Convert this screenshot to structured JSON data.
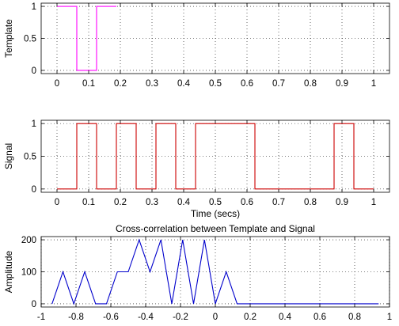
{
  "chart_data": [
    {
      "type": "line",
      "ylabel": "Template",
      "xlabel": "",
      "title": "",
      "xlim": [
        -0.05,
        1.05
      ],
      "ylim": [
        -0.05,
        1.05
      ],
      "xticks": [
        "0",
        "0.1",
        "0.2",
        "0.3",
        "0.4",
        "0.5",
        "0.6",
        "0.7",
        "0.8",
        "0.9",
        "1"
      ],
      "yticks": [
        "0",
        "0.5",
        "1"
      ],
      "grid": true,
      "color": "#ff00ff",
      "x": [
        0,
        0.0625,
        0.0625,
        0.125,
        0.125,
        0.1875
      ],
      "y": [
        1,
        1,
        0,
        0,
        1,
        1
      ]
    },
    {
      "type": "line",
      "ylabel": "Signal",
      "xlabel": "Time (secs)",
      "title": "",
      "xlim": [
        -0.05,
        1.05
      ],
      "ylim": [
        -0.05,
        1.05
      ],
      "xticks": [
        "0",
        "0.1",
        "0.2",
        "0.3",
        "0.4",
        "0.5",
        "0.6",
        "0.7",
        "0.8",
        "0.9",
        "1"
      ],
      "yticks": [
        "0",
        "0.5",
        "1"
      ],
      "grid": true,
      "color": "#cc0000",
      "x": [
        0,
        0.0625,
        0.0625,
        0.125,
        0.125,
        0.1875,
        0.1875,
        0.25,
        0.25,
        0.3125,
        0.3125,
        0.375,
        0.375,
        0.4375,
        0.4375,
        0.625,
        0.625,
        0.875,
        0.875,
        0.9375,
        0.9375,
        1.0
      ],
      "y": [
        0,
        0,
        1,
        1,
        0,
        0,
        1,
        1,
        0,
        0,
        1,
        1,
        0,
        0,
        1,
        1,
        0,
        0,
        1,
        1,
        0,
        0
      ]
    },
    {
      "type": "line",
      "ylabel": "Amplitude",
      "xlabel": "",
      "title": "Cross-correlation between Template and Signal",
      "xlim": [
        -1,
        1
      ],
      "ylim": [
        -10,
        210
      ],
      "xticks": [
        "-1",
        "-0.8",
        "-0.6",
        "-0.4",
        "-0.2",
        "0",
        "0.2",
        "0.4",
        "0.6",
        "0.8",
        "1"
      ],
      "yticks": [
        "0",
        "100",
        "200"
      ],
      "grid": true,
      "color": "#0000cc",
      "x": [
        -0.9375,
        -0.875,
        -0.8125,
        -0.75,
        -0.6875,
        -0.625,
        -0.5625,
        -0.5,
        -0.4375,
        -0.375,
        -0.3125,
        -0.25,
        -0.1875,
        -0.125,
        -0.0625,
        0,
        0.0625,
        0.125,
        0.1875,
        0.25,
        0.3125,
        0.375,
        0.4375,
        0.5,
        0.5625,
        0.625,
        0.6875,
        0.75,
        0.8125,
        0.875,
        0.9375
      ],
      "y": [
        0,
        100,
        0,
        100,
        0,
        0,
        100,
        100,
        200,
        100,
        200,
        0,
        200,
        0,
        200,
        0,
        100,
        0,
        0,
        0,
        0,
        0,
        0,
        0,
        0,
        0,
        0,
        0,
        0,
        0,
        0
      ]
    }
  ]
}
